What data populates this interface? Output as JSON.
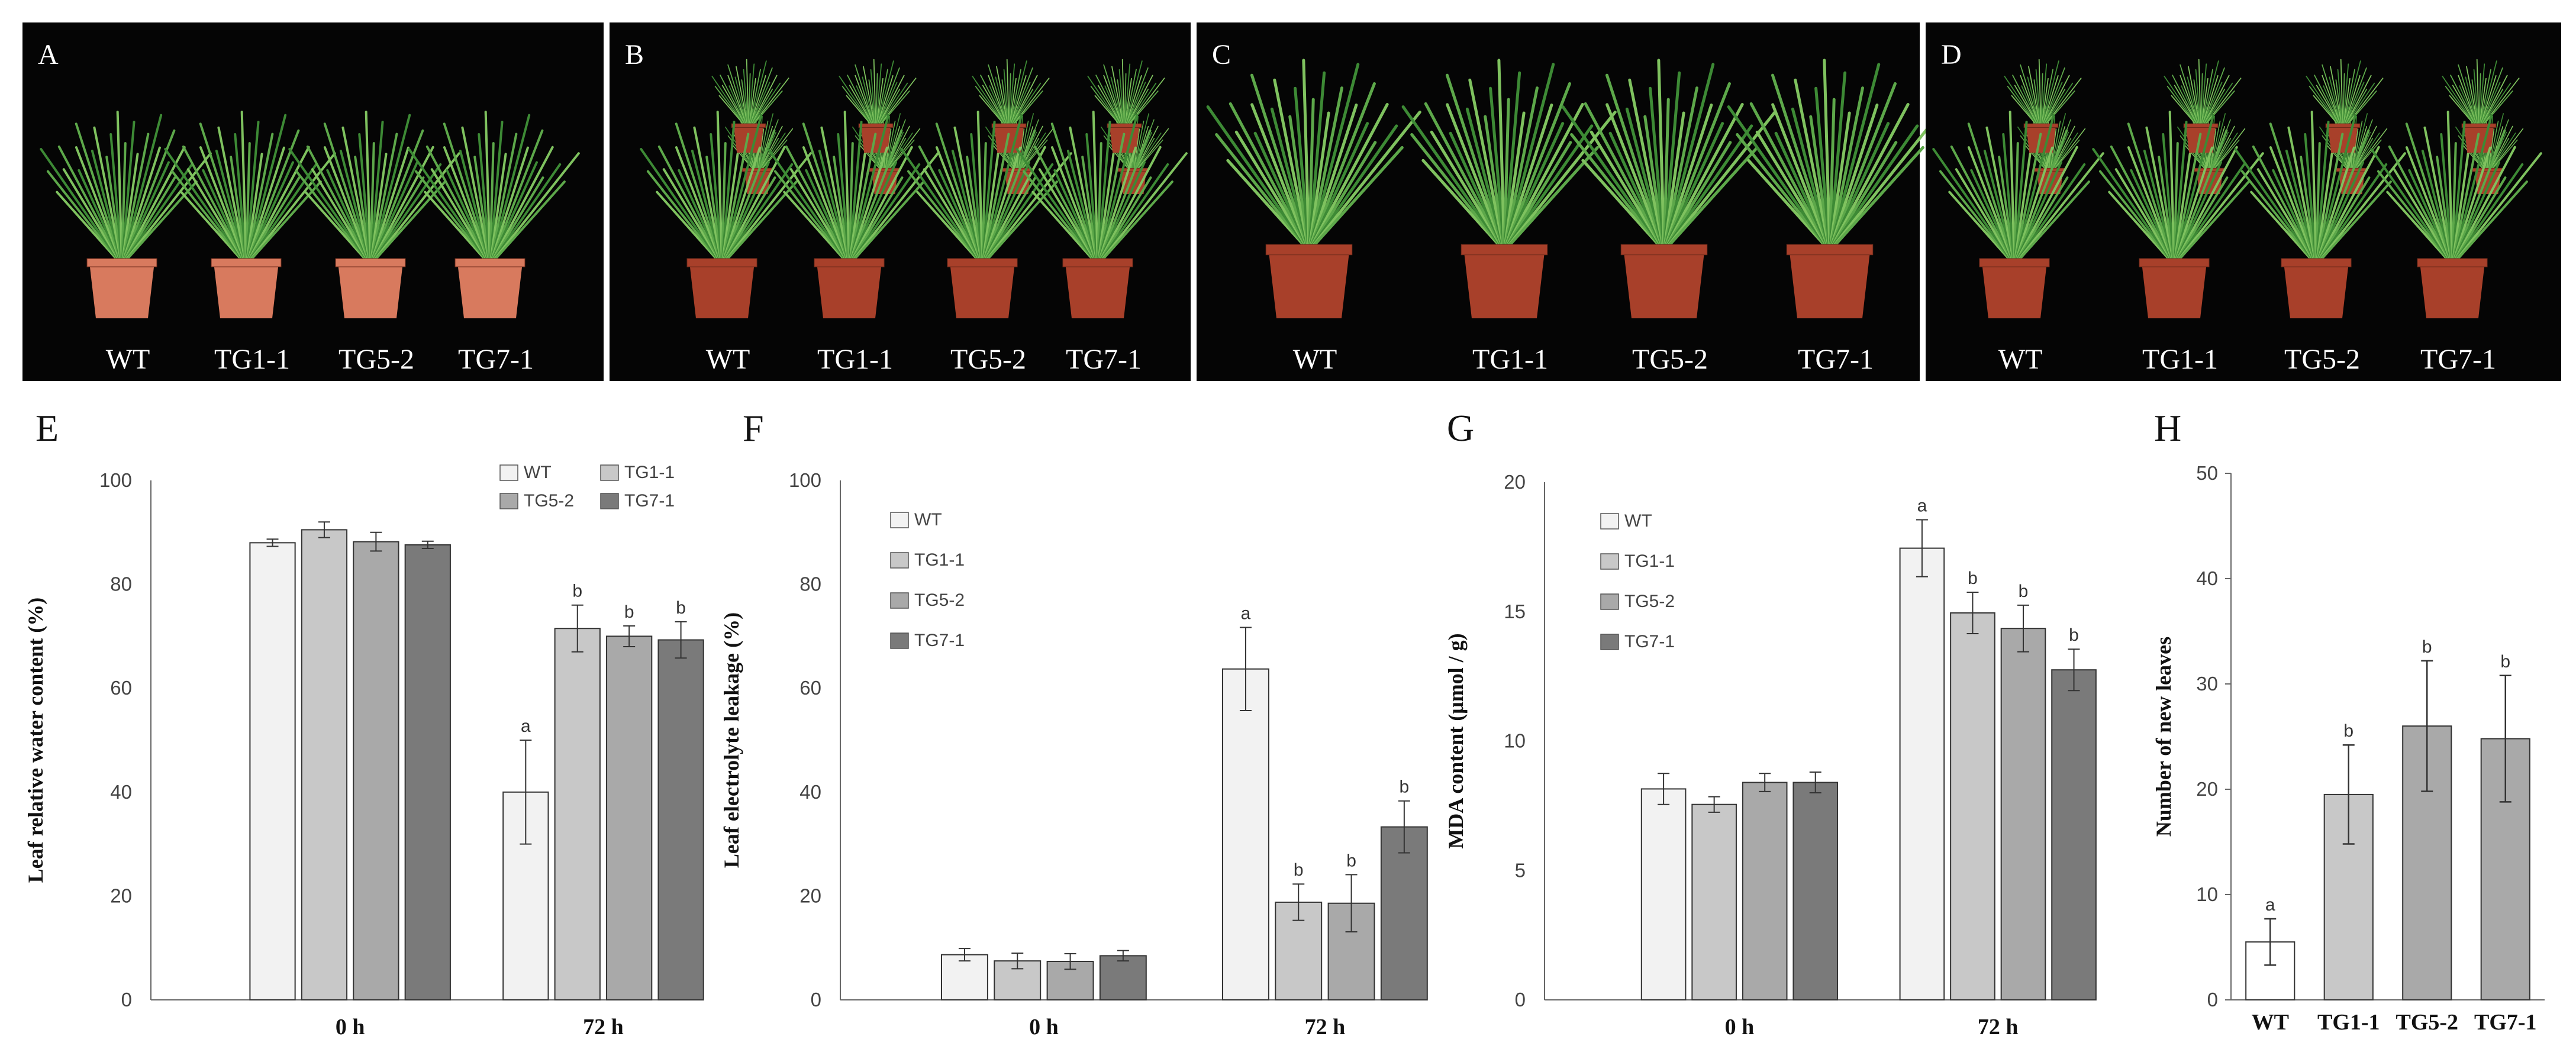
{
  "figure": {
    "panel_labels": [
      "A",
      "B",
      "C",
      "D",
      "E",
      "F",
      "G",
      "H"
    ],
    "photo_plant_labels": [
      "WT",
      "TG1-1",
      "TG5-2",
      "TG7-1"
    ]
  },
  "colors": {
    "WT": "#f2f2f2",
    "TG1-1": "#c8c8c8",
    "TG5-2": "#a9a9a9",
    "TG7-1": "#7a7a7a",
    "plant_green": "#5da84a",
    "pot_red": "#a8402a",
    "photo_bg": "#050505"
  },
  "chart_data": [
    {
      "panel": "E",
      "type": "bar",
      "categories": [
        "0 h",
        "72 h"
      ],
      "series": [
        {
          "name": "WT",
          "values": [
            88,
            40
          ],
          "errors": [
            0.7,
            10
          ],
          "letters": [
            "",
            "a"
          ]
        },
        {
          "name": "TG1-1",
          "values": [
            90.5,
            71.5
          ],
          "errors": [
            1.5,
            4.5
          ],
          "letters": [
            "",
            "b"
          ]
        },
        {
          "name": "TG5-2",
          "values": [
            88.2,
            70
          ],
          "errors": [
            1.8,
            2
          ],
          "letters": [
            "",
            "b"
          ]
        },
        {
          "name": "TG7-1",
          "values": [
            87.6,
            69.3
          ],
          "errors": [
            0.7,
            3.5
          ],
          "letters": [
            "",
            "b"
          ]
        }
      ],
      "ylabel": "Leaf relative water content (%)",
      "ylim": [
        0,
        100
      ],
      "yticks": [
        0,
        20,
        40,
        60,
        80,
        100
      ],
      "legend": {
        "position": "top-right",
        "columns": 2,
        "entries": [
          "WT",
          "TG1-1",
          "TG5-2",
          "TG7-1"
        ]
      }
    },
    {
      "panel": "F",
      "type": "bar",
      "categories": [
        "0 h",
        "72 h"
      ],
      "series": [
        {
          "name": "WT",
          "values": [
            8.7,
            63.7
          ],
          "errors": [
            1.2,
            8
          ],
          "letters": [
            "",
            "a"
          ]
        },
        {
          "name": "TG1-1",
          "values": [
            7.5,
            18.8
          ],
          "errors": [
            1.5,
            3.5
          ],
          "letters": [
            "",
            "b"
          ]
        },
        {
          "name": "TG5-2",
          "values": [
            7.4,
            18.6
          ],
          "errors": [
            1.5,
            5.5
          ],
          "letters": [
            "",
            "b"
          ]
        },
        {
          "name": "TG7-1",
          "values": [
            8.5,
            33.3
          ],
          "errors": [
            1,
            5
          ],
          "letters": [
            "",
            "b"
          ]
        }
      ],
      "ylabel": "Leaf electrolyte leakage (%)",
      "ylim": [
        0,
        100
      ],
      "yticks": [
        0,
        20,
        40,
        60,
        80,
        100
      ],
      "legend": {
        "position": "top-left",
        "columns": 1,
        "entries": [
          "WT",
          "TG1-1",
          "TG5-2",
          "TG7-1"
        ]
      }
    },
    {
      "panel": "G",
      "type": "bar",
      "categories": [
        "0 h",
        "72 h"
      ],
      "series": [
        {
          "name": "WT",
          "values": [
            8.15,
            17.45
          ],
          "errors": [
            0.6,
            1.1
          ],
          "letters": [
            "",
            "a"
          ]
        },
        {
          "name": "TG1-1",
          "values": [
            7.55,
            14.95
          ],
          "errors": [
            0.3,
            0.8
          ],
          "letters": [
            "",
            "b"
          ]
        },
        {
          "name": "TG5-2",
          "values": [
            8.4,
            14.35
          ],
          "errors": [
            0.35,
            0.9
          ],
          "letters": [
            "",
            "b"
          ]
        },
        {
          "name": "TG7-1",
          "values": [
            8.4,
            12.75
          ],
          "errors": [
            0.4,
            0.8
          ],
          "letters": [
            "",
            "b"
          ]
        }
      ],
      "ylabel": "MDA content (μmol / g)",
      "ylim": [
        0,
        20
      ],
      "yticks": [
        0,
        5,
        10,
        15,
        20
      ],
      "legend": {
        "position": "top-left",
        "columns": 1,
        "entries": [
          "WT",
          "TG1-1",
          "TG5-2",
          "TG7-1"
        ]
      }
    },
    {
      "panel": "H",
      "type": "bar",
      "categories": [
        "WT",
        "TG1-1",
        "TG5-2",
        "TG7-1"
      ],
      "values": [
        5.5,
        19.5,
        26,
        24.8
      ],
      "errors": [
        2.2,
        4.7,
        6.2,
        6
      ],
      "letters": [
        "a",
        "b",
        "b",
        "b"
      ],
      "ylabel": "Number of new leaves",
      "ylim": [
        0,
        50
      ],
      "yticks": [
        0,
        10,
        20,
        30,
        40,
        50
      ]
    }
  ]
}
